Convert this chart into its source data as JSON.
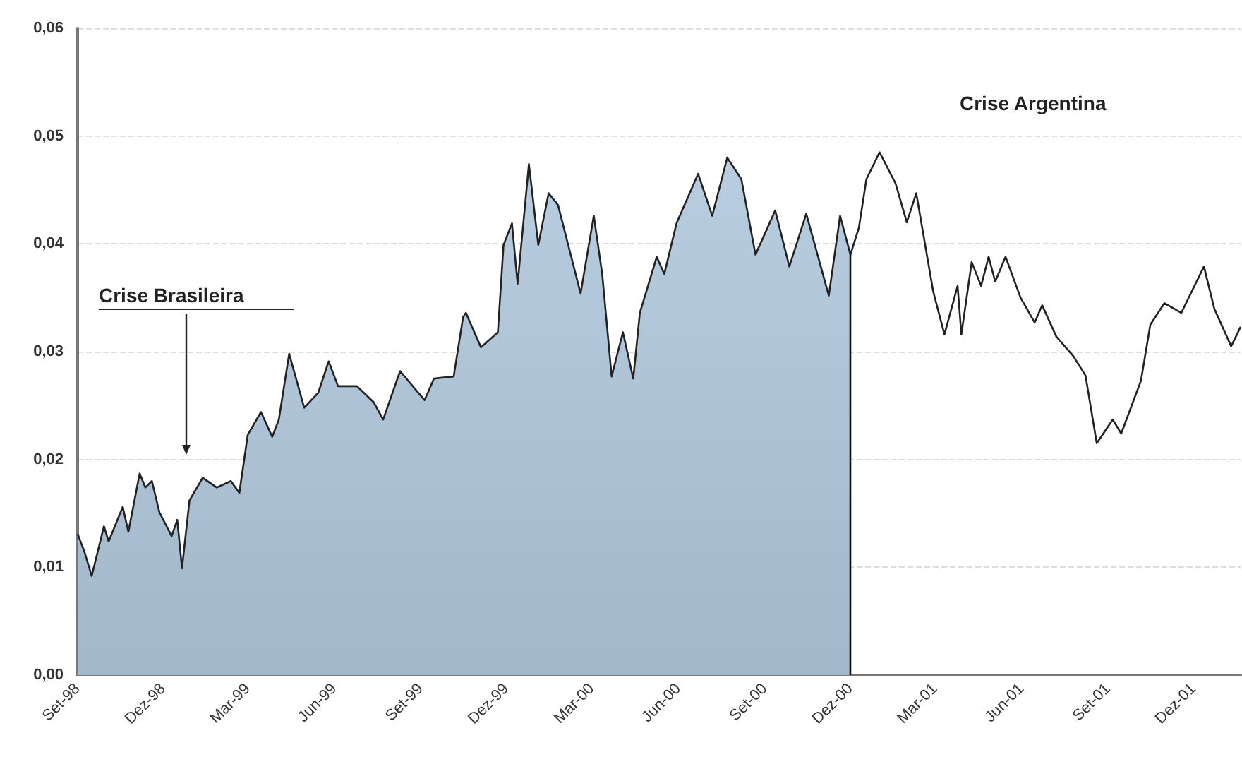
{
  "chart_data": {
    "type": "area",
    "x": [
      "1998-09-01",
      "1998-09-08",
      "1998-09-16",
      "1998-09-29",
      "1998-10-04",
      "1998-10-19",
      "1998-10-25",
      "1998-11-06",
      "1998-11-12",
      "1998-11-19",
      "1998-11-27",
      "1998-12-10",
      "1998-12-16",
      "1998-12-21",
      "1998-12-29",
      "1999-01-12",
      "1999-01-27",
      "1999-02-11",
      "1999-02-20",
      "1999-03-01",
      "1999-03-15",
      "1999-03-27",
      "1999-04-03",
      "1999-04-14",
      "1999-04-30",
      "1999-05-15",
      "1999-05-26",
      "1999-06-05",
      "1999-06-25",
      "1999-07-13",
      "1999-07-23",
      "1999-08-10",
      "1999-09-05",
      "1999-09-15",
      "1999-10-06",
      "1999-10-16",
      "1999-10-19",
      "1999-11-04",
      "1999-11-22",
      "1999-11-28",
      "1999-12-07",
      "1999-12-13",
      "1999-12-25",
      "2000-01-04",
      "2000-01-15",
      "2000-01-25",
      "2000-02-06",
      "2000-02-18",
      "2000-03-03",
      "2000-03-12",
      "2000-03-22",
      "2000-04-03",
      "2000-04-14",
      "2000-04-21",
      "2000-05-09",
      "2000-05-17",
      "2000-05-30",
      "2000-06-22",
      "2000-07-07",
      "2000-07-23",
      "2000-08-07",
      "2000-08-22",
      "2000-09-12",
      "2000-09-27",
      "2000-10-15",
      "2000-11-08",
      "2000-11-20",
      "2000-12-01",
      "2000-12-10",
      "2000-12-18",
      "2001-01-01",
      "2001-01-18",
      "2001-01-30",
      "2001-02-09",
      "2001-02-27",
      "2001-03-11",
      "2001-03-25",
      "2001-03-29",
      "2001-04-09",
      "2001-04-19",
      "2001-04-27",
      "2001-05-04",
      "2001-05-15",
      "2001-05-31",
      "2001-06-15",
      "2001-06-23",
      "2001-07-08",
      "2001-07-26",
      "2001-08-08",
      "2001-08-20",
      "2001-09-06",
      "2001-09-15",
      "2001-10-06",
      "2001-10-16",
      "2001-10-31",
      "2001-11-18",
      "2001-12-12",
      "2001-12-23",
      "2002-01-10",
      "2002-01-20"
    ],
    "series": [
      {
        "type": "line",
        "color": "#222222",
        "values": [
          0.0131,
          0.0115,
          0.0092,
          0.0138,
          0.0124,
          0.0156,
          0.0133,
          0.0187,
          0.0174,
          0.018,
          0.0151,
          0.0129,
          0.0144,
          0.0099,
          0.0162,
          0.0183,
          0.0174,
          0.018,
          0.0169,
          0.0223,
          0.0244,
          0.0221,
          0.0237,
          0.0298,
          0.0248,
          0.0262,
          0.0291,
          0.0268,
          0.0268,
          0.0253,
          0.0237,
          0.0282,
          0.0255,
          0.0275,
          0.0277,
          0.0332,
          0.0336,
          0.0304,
          0.0318,
          0.0399,
          0.0419,
          0.0363,
          0.0474,
          0.0399,
          0.0447,
          0.0436,
          0.0395,
          0.0354,
          0.0426,
          0.0372,
          0.0277,
          0.0318,
          0.0275,
          0.0336,
          0.0388,
          0.0372,
          0.0419,
          0.0465,
          0.0426,
          0.048,
          0.046,
          0.039,
          0.0431,
          0.0379,
          0.0428,
          0.0352,
          0.0426,
          0.039,
          0.0415,
          0.046,
          0.0485,
          0.0456,
          0.042,
          0.0447,
          0.0356,
          0.0316,
          0.0361,
          0.0316,
          0.0383,
          0.0361,
          0.0388,
          0.0365,
          0.0388,
          0.035,
          0.0327,
          0.0343,
          0.0314,
          0.0296,
          0.0278,
          0.0215,
          0.0237,
          0.0224,
          0.0273,
          0.0325,
          0.0345,
          0.0336,
          0.0379,
          0.034,
          0.0305,
          0.0323
        ]
      },
      {
        "color": "#a3b7cb",
        "x": [
          "1998-09-01",
          "1998-09-08",
          "1998-09-16",
          "1998-09-29",
          "1998-10-04",
          "1998-10-19",
          "1998-10-25",
          "1998-11-06",
          "1998-11-12",
          "1998-11-19",
          "1998-11-27",
          "1998-12-10",
          "1998-12-16",
          "1998-12-21",
          "1998-12-29",
          "1999-01-12",
          "1999-01-27",
          "1999-02-11",
          "1999-02-20",
          "1999-03-01",
          "1999-03-15",
          "1999-03-27",
          "1999-04-03",
          "1999-04-14",
          "1999-04-30",
          "1999-05-15",
          "1999-05-26",
          "1999-06-05",
          "1999-06-25",
          "1999-07-13",
          "1999-07-23",
          "1999-08-10",
          "1999-09-05",
          "1999-09-15",
          "1999-10-06",
          "1999-10-16",
          "1999-10-19",
          "1999-11-04",
          "1999-11-22",
          "1999-11-28",
          "1999-12-07",
          "1999-12-13",
          "1999-12-25",
          "2000-01-04",
          "2000-01-15",
          "2000-01-25",
          "2000-02-06",
          "2000-02-18",
          "2000-03-03",
          "2000-03-12",
          "2000-03-22",
          "2000-04-03",
          "2000-04-14",
          "2000-04-21",
          "2000-05-09",
          "2000-05-17",
          "2000-05-30",
          "2000-06-22",
          "2000-07-07",
          "2000-07-23",
          "2000-08-07",
          "2000-08-22",
          "2000-09-12",
          "2000-09-27",
          "2000-10-15",
          "2000-11-08",
          "2000-11-20",
          "2000-12-01"
        ],
        "values": [
          0.0131,
          0.0115,
          0.0092,
          0.0138,
          0.0124,
          0.0156,
          0.0133,
          0.0187,
          0.0174,
          0.018,
          0.0151,
          0.0129,
          0.0144,
          0.0099,
          0.0162,
          0.0183,
          0.0174,
          0.018,
          0.0169,
          0.0223,
          0.0244,
          0.0221,
          0.0237,
          0.0298,
          0.0248,
          0.0262,
          0.0291,
          0.0268,
          0.0268,
          0.0253,
          0.0237,
          0.0282,
          0.0255,
          0.0275,
          0.0277,
          0.0332,
          0.0336,
          0.0304,
          0.0318,
          0.0399,
          0.0419,
          0.0363,
          0.0474,
          0.0399,
          0.0447,
          0.0436,
          0.0395,
          0.0354,
          0.0426,
          0.0372,
          0.0277,
          0.0318,
          0.0275,
          0.0336,
          0.0388,
          0.0372,
          0.0419,
          0.0465,
          0.0426,
          0.048,
          0.046,
          0.039,
          0.0431,
          0.0379,
          0.0428,
          0.0352,
          0.0426,
          0.039
        ]
      }
    ],
    "xlim": [
      "1998-09-01",
      "2002-01-20"
    ],
    "xticks": [
      {
        "value": "1998-09-01",
        "label": "Set-98"
      },
      {
        "value": "1998-12-01",
        "label": "Dez-98"
      },
      {
        "value": "1999-03-01",
        "label": "Mar-99"
      },
      {
        "value": "1999-06-01",
        "label": "Jun-99"
      },
      {
        "value": "1999-09-01",
        "label": "Set-99"
      },
      {
        "value": "1999-12-01",
        "label": "Dez-99"
      },
      {
        "value": "2000-03-01",
        "label": "Mar-00"
      },
      {
        "value": "2000-06-01",
        "label": "Jun-00"
      },
      {
        "value": "2000-09-01",
        "label": "Set-00"
      },
      {
        "value": "2000-12-01",
        "label": "Dez-00"
      },
      {
        "value": "2001-03-01",
        "label": "Mar-01"
      },
      {
        "value": "2001-06-01",
        "label": "Jun-01"
      },
      {
        "value": "2001-09-01",
        "label": "Set-01"
      },
      {
        "value": "2001-12-01",
        "label": "Dez-01"
      }
    ],
    "ylim": [
      0,
      0.06
    ],
    "yticks": [
      {
        "value": 0,
        "label": "0,00"
      },
      {
        "value": 0.01,
        "label": "0,01"
      },
      {
        "value": 0.02,
        "label": "0,02"
      },
      {
        "value": 0.03,
        "label": "0,03"
      },
      {
        "value": 0.04,
        "label": "0,04"
      },
      {
        "value": 0.05,
        "label": "0,05"
      },
      {
        "value": 0.06,
        "label": "0,06"
      }
    ],
    "grid": "y",
    "ref_lines": [
      {
        "axis": "x",
        "value": "2000-12-01",
        "color": "#111111"
      }
    ],
    "annotations": [
      "Crise Brasileira",
      "Crise Argentina"
    ]
  }
}
